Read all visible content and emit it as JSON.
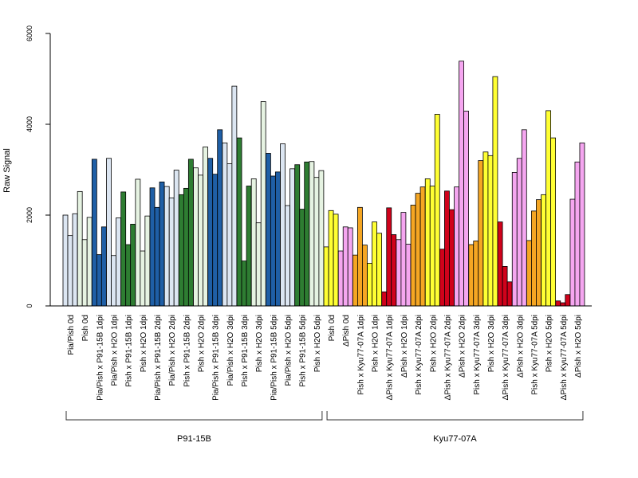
{
  "chart_data": {
    "type": "bar",
    "title": "",
    "xlabel": "",
    "ylabel": "Raw Signal",
    "ylim": [
      0,
      6000
    ],
    "yticks": [
      0,
      2000,
      4000,
      6000
    ],
    "grid": false,
    "categories": [
      "Pia/Pish 0d",
      "Pish 0d",
      "Pia/Pish x P91-15B 1dpi",
      "Pia/Pish x H2O 1dpi",
      "Pish x P91-15B 1dpi",
      "Pish x H2O 1dpi",
      "Pia/Pish x P91-15B 2dpi",
      "Pia/Pish x H2O 2dpi",
      "Pish x P91-15B 2dpi",
      "Pish x H2O 2dpi",
      "Pia/Pish x P91-15B 3dpi",
      "Pia/Pish x H2O 3dpi",
      "Pish x P91-15B 3dpi",
      "Pish x H2O 3dpi",
      "Pia/Pish x P91-15B 5dpi",
      "Pia/Pish x H2O 5dpi",
      "Pish x P91-15B 5dpi",
      "Pish x H2O 5dpi",
      "Pish 0d",
      "ΔPish 0d",
      "Pish x Kyu77-07A 1dpi",
      "Pish x H2O 1dpi",
      "ΔPish x Kyu77-07A 1dpi",
      "ΔPish x H2O 1dpi",
      "Pish x Kyu77-07A 2dpi",
      "Pish x H2O 2dpi",
      "ΔPish x Kyu77-07A 2dpi",
      "ΔPish x H2O 2dpi",
      "Pish x Kyu77-07A 3dpi",
      "Pish x H2O 3dpi",
      "ΔPish x Kyu77-07A 3dpi",
      "ΔPish x H2O 3dpi",
      "Pish x Kyu77-07A 5dpi",
      "Pish x H2O 5dpi",
      "ΔPish x Kyu77-07A 5dpi",
      "ΔPish x H2O 5dpi"
    ],
    "colors": [
      "#dce6f2",
      "#e6f3e2",
      "#1f5fa6",
      "#dce6f2",
      "#2e7d32",
      "#e6f3e2",
      "#1f5fa6",
      "#dce6f2",
      "#2e7d32",
      "#e6f3e2",
      "#1f5fa6",
      "#dce6f2",
      "#2e7d32",
      "#e6f3e2",
      "#1f5fa6",
      "#dce6f2",
      "#2e7d32",
      "#e6f3e2",
      "#ffff33",
      "#f5a6f0",
      "#f5a623",
      "#ffff33",
      "#d0021b",
      "#f5a6f0",
      "#f5a623",
      "#ffff33",
      "#d0021b",
      "#f5a6f0",
      "#f5a623",
      "#ffff33",
      "#d0021b",
      "#f5a6f0",
      "#f5a623",
      "#ffff33",
      "#d0021b",
      "#f5a6f0"
    ],
    "replicates": [
      [
        2000,
        1550,
        2030
      ],
      [
        2520,
        1460,
        1950
      ],
      [
        3230,
        1130,
        1740
      ],
      [
        3250,
        1110,
        1940
      ],
      [
        2510,
        1350,
        1800
      ],
      [
        2790,
        1210,
        1980
      ],
      [
        2600,
        2170,
        2730
      ],
      [
        2630,
        2380,
        2990
      ],
      [
        2450,
        2590,
        3230
      ],
      [
        3040,
        2880,
        3500
      ],
      [
        3250,
        2900,
        3880
      ],
      [
        3590,
        3130,
        4840
      ],
      [
        3700,
        990,
        2640
      ],
      [
        2800,
        1830,
        4500
      ],
      [
        3360,
        2860,
        2950
      ],
      [
        3570,
        2210,
        3020
      ],
      [
        3110,
        2130,
        3170
      ],
      [
        3180,
        2830,
        2980
      ],
      [
        1300,
        2100,
        2020
      ],
      [
        1210,
        1740,
        1720
      ],
      [
        1120,
        2170,
        1340
      ],
      [
        940,
        1850,
        1600
      ],
      [
        310,
        2160,
        1570
      ],
      [
        1460,
        2060,
        1360
      ],
      [
        2220,
        2480,
        2620
      ],
      [
        2800,
        2640,
        4220
      ],
      [
        1250,
        2530,
        2120
      ],
      [
        2620,
        5390,
        4290
      ],
      [
        1350,
        1430,
        3200
      ],
      [
        3390,
        3310,
        5050
      ],
      [
        1850,
        870,
        530
      ],
      [
        2940,
        3250,
        3880
      ],
      [
        1440,
        2090,
        2340
      ],
      [
        2450,
        4300,
        3700
      ],
      [
        110,
        70,
        250
      ],
      [
        2350,
        3170,
        3590
      ]
    ],
    "groups": [
      {
        "label": "P91-15B",
        "from": 0,
        "to": 17
      },
      {
        "label": "Kyu77-07A",
        "from": 18,
        "to": 35
      }
    ]
  }
}
